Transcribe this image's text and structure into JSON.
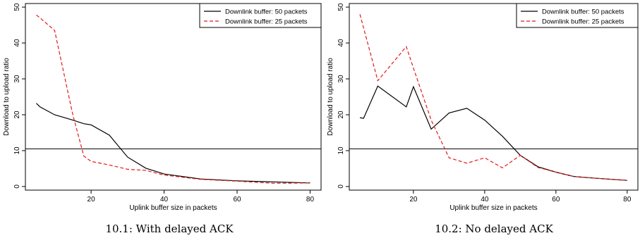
{
  "chart_data": [
    {
      "type": "line",
      "caption": "10.1: With delayed ACK",
      "xlabel": "Uplink buffer size in packets",
      "ylabel": "Download to upload ratio",
      "xlim": [
        2,
        83
      ],
      "ylim": [
        -1,
        51
      ],
      "xticks": [
        20,
        40,
        60,
        80
      ],
      "yticks": [
        0,
        10,
        20,
        30,
        40,
        50
      ],
      "hline": 10.5,
      "grid": false,
      "legend_position": "top-right",
      "series": [
        {
          "name": "Downlink buffer: 50 packets",
          "color": "#000000",
          "dash": "solid",
          "x": [
            5,
            6,
            10,
            15,
            18,
            20,
            25,
            30,
            35,
            40,
            50,
            60,
            70,
            80
          ],
          "y": [
            23.2,
            22.2,
            20.0,
            18.5,
            17.5,
            17.2,
            14.3,
            8.2,
            5.1,
            3.5,
            2.1,
            1.6,
            1.3,
            1.0
          ]
        },
        {
          "name": "Downlink buffer: 25 packets",
          "color": "#e41a1c",
          "dash": "dashed",
          "x": [
            5,
            6,
            10,
            15,
            18,
            20,
            25,
            30,
            35,
            40,
            50,
            60,
            70,
            80
          ],
          "y": [
            47.8,
            47.0,
            43.5,
            20.0,
            8.5,
            7.0,
            6.0,
            4.8,
            4.5,
            3.2,
            2.0,
            1.5,
            0.9,
            1.0
          ]
        }
      ]
    },
    {
      "type": "line",
      "caption": "10.2: No delayed ACK",
      "xlabel": "Uplink buffer size in packets",
      "ylabel": "Download to upload ratio",
      "xlim": [
        2,
        83
      ],
      "ylim": [
        -1,
        51
      ],
      "xticks": [
        20,
        40,
        60,
        80
      ],
      "yticks": [
        0,
        10,
        20,
        30,
        40,
        50
      ],
      "hline": 10.5,
      "grid": false,
      "legend_position": "top-right",
      "series": [
        {
          "name": "Downlink buffer: 50 packets",
          "color": "#000000",
          "dash": "solid",
          "x": [
            5,
            6,
            10,
            18,
            20,
            25,
            30,
            35,
            40,
            45,
            50,
            55,
            60,
            65,
            70,
            80
          ],
          "y": [
            19.2,
            19.0,
            28.0,
            22.2,
            27.8,
            16.0,
            20.5,
            21.8,
            18.5,
            14.0,
            8.7,
            5.5,
            4.0,
            2.8,
            2.4,
            1.7
          ]
        },
        {
          "name": "Downlink buffer: 25 packets",
          "color": "#e41a1c",
          "dash": "dashed",
          "x": [
            5,
            10,
            18,
            20,
            25,
            30,
            35,
            40,
            45,
            50,
            55,
            60,
            65,
            70,
            80
          ],
          "y": [
            48.0,
            29.5,
            39.0,
            33.0,
            18.5,
            8.0,
            6.5,
            8.0,
            5.2,
            8.7,
            5.3,
            4.0,
            2.8,
            2.4,
            1.7
          ]
        }
      ]
    }
  ]
}
